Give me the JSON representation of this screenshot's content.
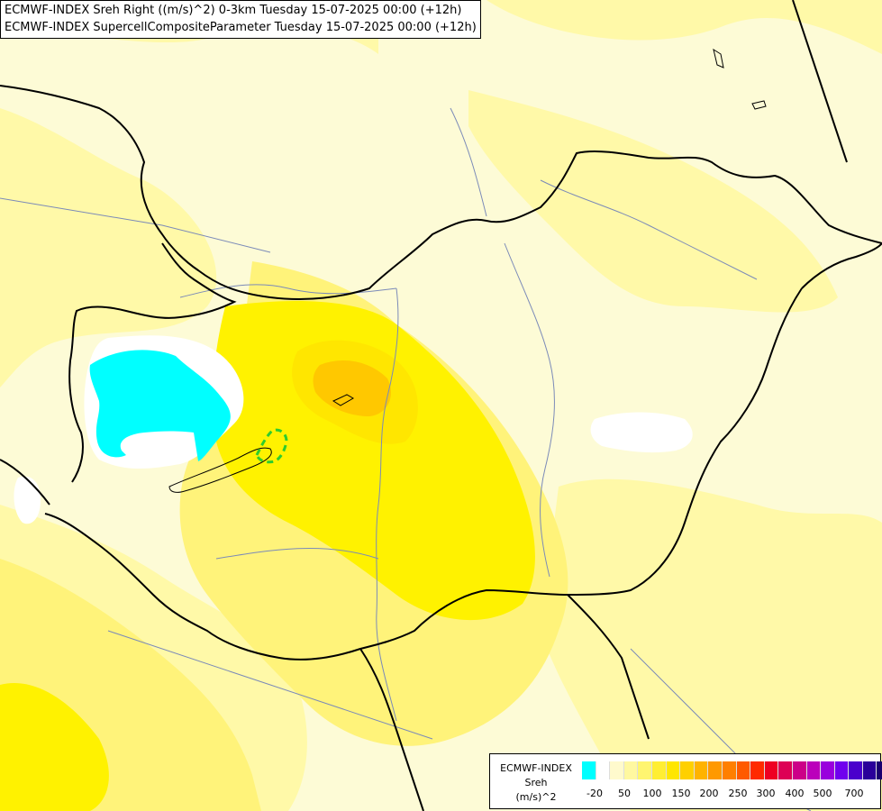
{
  "header": {
    "line1": "ECMWF-INDEX Sreh Right ((m/s)^2) 0-3km Tuesday 15-07-2025 00:00 (+12h)",
    "line2": "ECMWF-INDEX SupercellCompositeParameter Tuesday 15-07-2025 00:00 (+12h)"
  },
  "legend": {
    "line1": "ECMWF-INDEX",
    "line2": "Sreh",
    "line3": "(m/s)^2",
    "colors": [
      "#00ffff",
      "#ffffff",
      "#fffacd",
      "#fff8a0",
      "#fff570",
      "#ffee33",
      "#ffe600",
      "#ffd000",
      "#ffb300",
      "#ff9900",
      "#ff7f00",
      "#ff5a00",
      "#ff2a00",
      "#ee0022",
      "#dd0055",
      "#cc0088",
      "#bb00bb",
      "#9900dd",
      "#7000ee",
      "#4a00cc",
      "#2a009a",
      "#1a0070"
    ],
    "ticks": [
      "-20",
      "50",
      "100",
      "150",
      "200",
      "250",
      "300",
      "400",
      "500",
      "700"
    ]
  },
  "map": {
    "colors": {
      "background": "#fdfbd6",
      "pale": "#fff9a8",
      "light": "#fff37a",
      "mid": "#fff200",
      "strong": "#ffe600",
      "orange": "#ffc800",
      "cyan": "#00ffff",
      "white": "#ffffff",
      "border": "#000000",
      "river": "#7b8ab8",
      "scp": "#2ecc2e"
    }
  }
}
